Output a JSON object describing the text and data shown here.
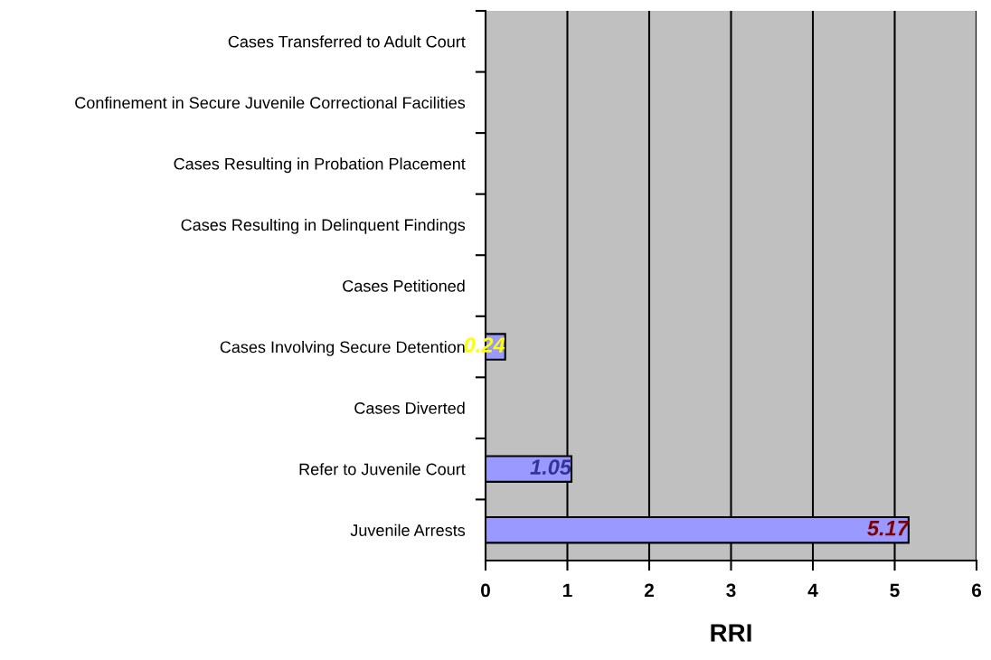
{
  "chart_data": {
    "type": "bar",
    "orientation": "horizontal",
    "xlabel": "RRI",
    "categories": [
      "Cases Transferred to Adult Court",
      "Confinement in Secure Juvenile Correctional Facilities",
      "Cases Resulting in Probation Placement",
      "Cases Resulting in Delinquent Findings",
      "Cases Petitioned",
      "Cases Involving Secure Detention",
      "Cases Diverted",
      "Refer to Juvenile Court",
      "Juvenile Arrests"
    ],
    "values": [
      null,
      null,
      null,
      null,
      null,
      0.24,
      null,
      1.05,
      5.17
    ],
    "color": "#9999ff",
    "xlim": [
      0,
      6
    ],
    "xticks": [
      0,
      1,
      2,
      3,
      4,
      5,
      6
    ],
    "grid": "x",
    "data_labels": true
  }
}
